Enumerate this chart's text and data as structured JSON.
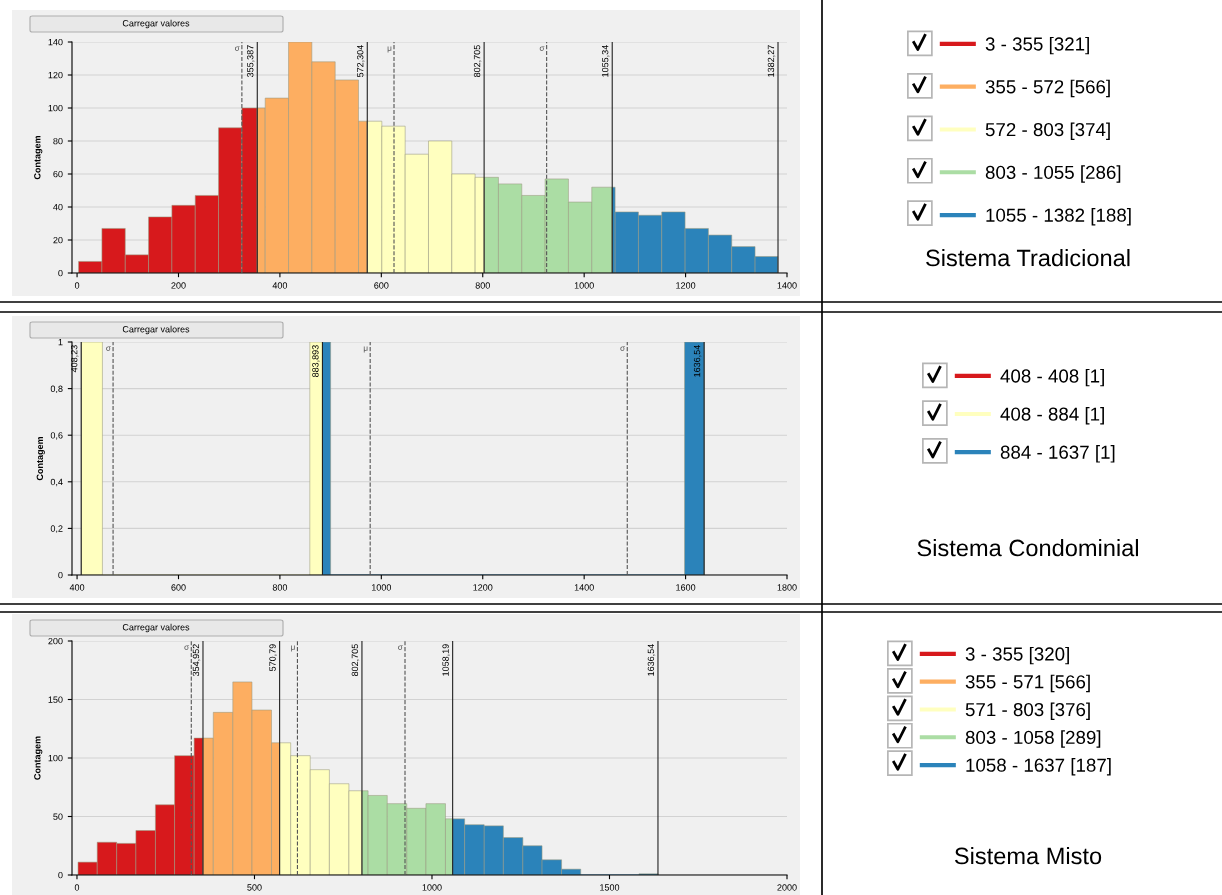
{
  "chart_data": [
    {
      "type": "histogram",
      "ylabel": "Contagem",
      "annotations": [
        "Carregar valores",
        "Sistema Tradicional"
      ],
      "bins": [
        3,
        49,
        95,
        141,
        187,
        233,
        279,
        325,
        355,
        371,
        417,
        463,
        509,
        555,
        572,
        601,
        647,
        693,
        739,
        785,
        803,
        831,
        877,
        923,
        969,
        1015,
        1055,
        1061,
        1107,
        1153,
        1199,
        1245,
        1291,
        1337,
        1382
      ],
      "series": [
        {
          "name": "3 - 355 [321]",
          "color": "#d7191c",
          "values": [
            7,
            27,
            11,
            34,
            41,
            47,
            88,
            100,
            null,
            null,
            null,
            null,
            null,
            null,
            null,
            null,
            null,
            null,
            null,
            null,
            null,
            null,
            null,
            null,
            null,
            null,
            null,
            null,
            null,
            null,
            null,
            null,
            null,
            null
          ]
        },
        {
          "name": "355 - 572 [566]",
          "color": "#fdae61",
          "values": [
            null,
            null,
            null,
            null,
            null,
            null,
            null,
            null,
            100,
            106,
            140,
            128,
            117,
            92,
            null,
            null,
            null,
            null,
            null,
            null,
            null,
            null,
            null,
            null,
            null,
            null,
            null,
            null,
            null,
            null,
            null,
            null,
            null,
            null
          ]
        },
        {
          "name": "572 - 803 [374]",
          "color": "#ffffbf",
          "values": [
            null,
            null,
            null,
            null,
            null,
            null,
            null,
            null,
            null,
            null,
            null,
            null,
            null,
            null,
            92,
            89,
            72,
            80,
            60,
            58,
            null,
            null,
            null,
            null,
            null,
            null,
            null,
            null,
            null,
            null,
            null,
            null,
            null,
            null
          ]
        },
        {
          "name": "803 - 1055 [286]",
          "color": "#abdda4",
          "values": [
            null,
            null,
            null,
            null,
            null,
            null,
            null,
            null,
            null,
            null,
            null,
            null,
            null,
            null,
            null,
            null,
            null,
            null,
            null,
            null,
            58,
            54,
            47,
            57,
            43,
            52,
            null,
            null,
            null,
            null,
            null,
            null,
            null,
            null
          ]
        },
        {
          "name": "1055 - 1382 [188]",
          "color": "#2b83ba",
          "values": [
            null,
            null,
            null,
            null,
            null,
            null,
            null,
            null,
            null,
            null,
            null,
            null,
            null,
            null,
            null,
            null,
            null,
            null,
            null,
            null,
            null,
            null,
            null,
            null,
            null,
            null,
            52,
            37,
            35,
            37,
            27,
            23,
            16,
            10
          ]
        }
      ],
      "xlim": [
        -10,
        1400
      ],
      "xticks": [
        0,
        200,
        400,
        600,
        800,
        1000,
        1200,
        1400
      ],
      "ylim": [
        0,
        140
      ],
      "yticks": [
        0,
        20,
        40,
        60,
        80,
        100,
        120,
        140
      ],
      "ref_lines": [
        {
          "axis": "x",
          "value": 325,
          "label": "σ",
          "line_style": "dashed"
        },
        {
          "axis": "x",
          "value": 355.387,
          "label": "355,387",
          "line_style": "solid"
        },
        {
          "axis": "x",
          "value": 572.304,
          "label": "572,304",
          "line_style": "solid"
        },
        {
          "axis": "x",
          "value": 625,
          "label": "μ",
          "line_style": "dashed"
        },
        {
          "axis": "x",
          "value": 802.705,
          "label": "802,705",
          "line_style": "solid"
        },
        {
          "axis": "x",
          "value": 926,
          "label": "σ",
          "line_style": "dashed"
        },
        {
          "axis": "x",
          "value": 1055.34,
          "label": "1055,34",
          "line_style": "solid"
        },
        {
          "axis": "x",
          "value": 1382.27,
          "label": "1382,27",
          "line_style": "solid"
        }
      ],
      "grid": "y",
      "legend": "right"
    },
    {
      "type": "histogram",
      "ylabel": "Contagem",
      "annotations": [
        "Carregar valores",
        "Sistema Condominial"
      ],
      "bins": [
        408,
        450,
        859,
        884,
        900,
        1598,
        1637
      ],
      "series": [
        {
          "name": "408 - 408 [1]",
          "color": "#d7191c",
          "values": [
            0,
            null,
            null,
            null,
            null,
            null
          ]
        },
        {
          "name": "408 - 884 [1]",
          "color": "#ffffbf",
          "values": [
            1,
            0,
            1,
            null,
            null,
            null
          ]
        },
        {
          "name": "884 - 1637 [1]",
          "color": "#2b83ba",
          "values": [
            null,
            null,
            null,
            1,
            0,
            1
          ]
        }
      ],
      "xlim": [
        390,
        1800
      ],
      "xticks": [
        400,
        600,
        800,
        1000,
        1200,
        1400,
        1600,
        1800
      ],
      "ylim": [
        0,
        1
      ],
      "yticks": [
        0,
        {
          "value": 0.2,
          "label": "0,2"
        },
        {
          "value": 0.4,
          "label": "0,4"
        },
        {
          "value": 0.6,
          "label": "0,6"
        },
        {
          "value": 0.8,
          "label": "0,8"
        },
        1
      ],
      "ref_lines": [
        {
          "axis": "x",
          "value": 408.23,
          "label": "408,23",
          "line_style": "solid"
        },
        {
          "axis": "x",
          "value": 471,
          "label": "σ",
          "line_style": "dashed"
        },
        {
          "axis": "x",
          "value": 883.893,
          "label": "883,893",
          "line_style": "solid"
        },
        {
          "axis": "x",
          "value": 978,
          "label": "μ",
          "line_style": "dashed"
        },
        {
          "axis": "x",
          "value": 1485,
          "label": "σ",
          "line_style": "dashed"
        },
        {
          "axis": "x",
          "value": 1636.54,
          "label": "1636,54",
          "line_style": "solid"
        }
      ],
      "grid": "y",
      "legend": "right"
    },
    {
      "type": "histogram",
      "ylabel": "Contagem",
      "annotations": [
        "Carregar valores",
        "Sistema Misto"
      ],
      "bins": [
        3,
        57,
        112,
        166,
        221,
        275,
        330,
        355,
        384,
        439,
        493,
        548,
        571,
        602,
        657,
        711,
        766,
        803,
        820,
        874,
        929,
        983,
        1038,
        1058,
        1092,
        1147,
        1201,
        1256,
        1310,
        1365,
        1419,
        1474,
        1528,
        1583,
        1637
      ],
      "series": [
        {
          "name": "3 - 355 [320]",
          "color": "#d7191c",
          "values": [
            11,
            28,
            27,
            38,
            60,
            102,
            117,
            null,
            null,
            null,
            null,
            null,
            null,
            null,
            null,
            null,
            null,
            null,
            null,
            null,
            null,
            null,
            null,
            null,
            null,
            null,
            null,
            null,
            null,
            null,
            null,
            null,
            null,
            null
          ]
        },
        {
          "name": "355 - 571 [566]",
          "color": "#fdae61",
          "values": [
            null,
            null,
            null,
            null,
            null,
            null,
            null,
            117,
            139,
            165,
            141,
            113,
            null,
            null,
            null,
            null,
            null,
            null,
            null,
            null,
            null,
            null,
            null,
            null,
            null,
            null,
            null,
            null,
            null,
            null,
            null,
            null,
            null,
            null
          ]
        },
        {
          "name": "571 - 803 [376]",
          "color": "#ffffbf",
          "values": [
            null,
            null,
            null,
            null,
            null,
            null,
            null,
            null,
            null,
            null,
            null,
            null,
            113,
            102,
            90,
            78,
            72,
            null,
            null,
            null,
            null,
            null,
            null,
            null,
            null,
            null,
            null,
            null,
            null,
            null,
            null,
            null,
            null,
            null
          ]
        },
        {
          "name": "803 - 1058 [289]",
          "color": "#abdda4",
          "values": [
            null,
            null,
            null,
            null,
            null,
            null,
            null,
            null,
            null,
            null,
            null,
            null,
            null,
            null,
            null,
            null,
            null,
            72,
            68,
            61,
            57,
            61,
            48,
            null,
            null,
            null,
            null,
            null,
            null,
            null,
            null,
            null,
            null,
            null
          ]
        },
        {
          "name": "1058 - 1637 [187]",
          "color": "#2b83ba",
          "values": [
            null,
            null,
            null,
            null,
            null,
            null,
            null,
            null,
            null,
            null,
            null,
            null,
            null,
            null,
            null,
            null,
            null,
            null,
            null,
            null,
            null,
            null,
            null,
            48,
            43,
            42,
            32,
            25,
            13,
            5,
            0,
            0,
            0,
            1
          ]
        }
      ],
      "xlim": [
        -14,
        2000
      ],
      "xticks": [
        0,
        500,
        1000,
        1500,
        2000
      ],
      "ylim": [
        0,
        200
      ],
      "yticks": [
        0,
        50,
        100,
        150,
        200
      ],
      "ref_lines": [
        {
          "axis": "x",
          "value": 322,
          "label": "σ",
          "line_style": "dashed"
        },
        {
          "axis": "x",
          "value": 354.952,
          "label": "354,952",
          "line_style": "solid"
        },
        {
          "axis": "x",
          "value": 570.79,
          "label": "570,79",
          "line_style": "solid"
        },
        {
          "axis": "x",
          "value": 621,
          "label": "μ",
          "line_style": "dashed"
        },
        {
          "axis": "x",
          "value": 802.705,
          "label": "802,705",
          "line_style": "solid"
        },
        {
          "axis": "x",
          "value": 924,
          "label": "σ",
          "line_style": "dashed"
        },
        {
          "axis": "x",
          "value": 1058.19,
          "label": "1058,19",
          "line_style": "solid"
        },
        {
          "axis": "x",
          "value": 1636.54,
          "label": "1636,54",
          "line_style": "solid"
        }
      ],
      "grid": "y",
      "legend": "right"
    }
  ]
}
